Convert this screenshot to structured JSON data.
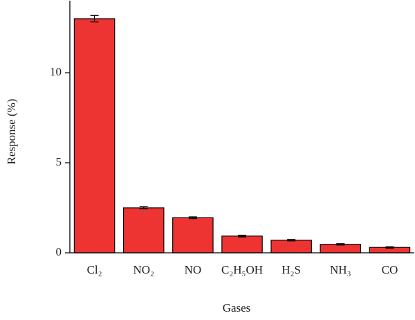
{
  "chart_data": {
    "type": "bar",
    "x_label": "Gases",
    "y_label": "Response (%)",
    "categories": [
      "Cl₂",
      "NO₂",
      "NO",
      "C₂H₅OH",
      "H₂S",
      "NH₃",
      "CO"
    ],
    "values": [
      13.0,
      2.5,
      1.95,
      0.93,
      0.7,
      0.47,
      0.3
    ],
    "errors": [
      0.18,
      0.06,
      0.05,
      0.05,
      0.04,
      0.04,
      0.04
    ],
    "color": "#ee3333",
    "ylim": [
      0,
      14
    ],
    "yticks": [
      0,
      5,
      10
    ]
  }
}
